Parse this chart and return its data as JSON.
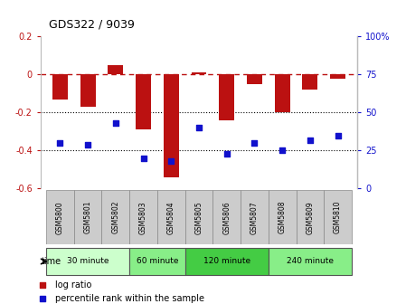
{
  "title": "GDS322 / 9039",
  "samples": [
    "GSM5800",
    "GSM5801",
    "GSM5802",
    "GSM5803",
    "GSM5804",
    "GSM5805",
    "GSM5806",
    "GSM5807",
    "GSM5808",
    "GSM5809",
    "GSM5810"
  ],
  "log_ratio": [
    -0.13,
    -0.17,
    0.05,
    -0.29,
    -0.54,
    0.01,
    -0.24,
    -0.05,
    -0.2,
    -0.08,
    -0.02
  ],
  "percentile": [
    30,
    29,
    43,
    20,
    18,
    40,
    23,
    30,
    25,
    32,
    35
  ],
  "bar_color": "#bb1111",
  "dot_color": "#1111cc",
  "ylim_left": [
    -0.6,
    0.2
  ],
  "ylim_right": [
    0,
    100
  ],
  "yticks_left": [
    -0.6,
    -0.4,
    -0.2,
    0.0,
    0.2
  ],
  "yticks_right": [
    0,
    25,
    50,
    75,
    100
  ],
  "ytick_labels_right": [
    "0",
    "25",
    "50",
    "75",
    "100%"
  ],
  "hline_y": 0,
  "dotted_hlines": [
    -0.2,
    -0.4
  ],
  "groups": [
    {
      "label": "30 minute",
      "start": 0,
      "end": 3,
      "color": "#ccffcc"
    },
    {
      "label": "60 minute",
      "start": 3,
      "end": 5,
      "color": "#88ee88"
    },
    {
      "label": "120 minute",
      "start": 5,
      "end": 8,
      "color": "#44cc44"
    },
    {
      "label": "240 minute",
      "start": 8,
      "end": 11,
      "color": "#88ee88"
    }
  ],
  "time_label": "time",
  "legend_bar_label": "log ratio",
  "legend_dot_label": "percentile rank within the sample",
  "bg_color": "#ffffff",
  "plot_bg": "#ffffff",
  "bar_width": 0.55,
  "sample_bg": "#cccccc",
  "sample_border": "#888888"
}
